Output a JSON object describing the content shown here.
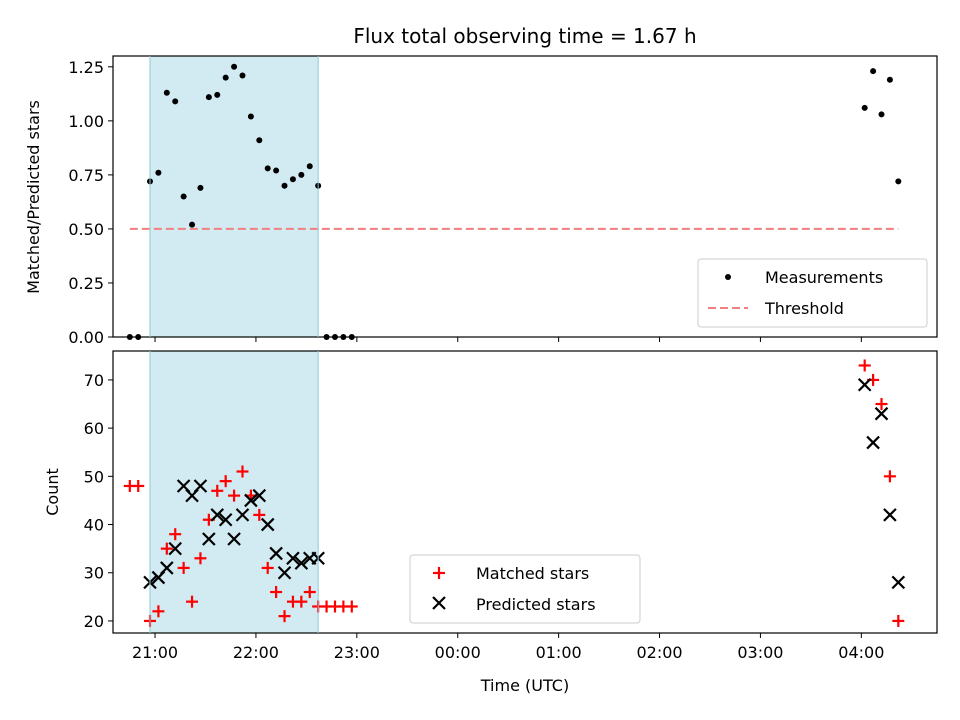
{
  "chart_data": [
    {
      "type": "scatter",
      "title": "Flux total observing time = 1.67 h",
      "ylabel": "Matched/Predicted stars",
      "xlim": [
        "20:35",
        "04:45"
      ],
      "ylim": [
        0,
        1.3
      ],
      "yticks": [
        "0.00",
        "0.25",
        "0.50",
        "0.75",
        "1.00",
        "1.25"
      ],
      "ytick_values": [
        0,
        0.25,
        0.5,
        0.75,
        1.0,
        1.25
      ],
      "shaded_interval": [
        "20:57",
        "22:37"
      ],
      "legend_location": "lower-right",
      "series": [
        {
          "name": "Measurements",
          "marker": "dot",
          "color": "#000000",
          "points": [
            [
              "20:45",
              0.0
            ],
            [
              "20:50",
              0.0
            ],
            [
              "20:57",
              0.72
            ],
            [
              "21:02",
              0.76
            ],
            [
              "21:07",
              1.13
            ],
            [
              "21:12",
              1.09
            ],
            [
              "21:17",
              0.65
            ],
            [
              "21:22",
              0.52
            ],
            [
              "21:27",
              0.69
            ],
            [
              "21:32",
              1.11
            ],
            [
              "21:37",
              1.12
            ],
            [
              "21:42",
              1.2
            ],
            [
              "21:47",
              1.25
            ],
            [
              "21:52",
              1.21
            ],
            [
              "21:57",
              1.02
            ],
            [
              "22:02",
              0.91
            ],
            [
              "22:07",
              0.78
            ],
            [
              "22:12",
              0.77
            ],
            [
              "22:17",
              0.7
            ],
            [
              "22:22",
              0.73
            ],
            [
              "22:27",
              0.75
            ],
            [
              "22:32",
              0.79
            ],
            [
              "22:37",
              0.7
            ],
            [
              "22:42",
              0.0
            ],
            [
              "22:47",
              0.0
            ],
            [
              "22:52",
              0.0
            ],
            [
              "22:57",
              0.0
            ],
            [
              "04:02",
              1.06
            ],
            [
              "04:07",
              1.23
            ],
            [
              "04:12",
              1.03
            ],
            [
              "04:17",
              1.19
            ],
            [
              "04:22",
              0.72
            ]
          ]
        },
        {
          "name": "Threshold",
          "style": "dashed",
          "color": "#f08080",
          "points": [
            [
              "20:45",
              0.5
            ],
            [
              "04:22",
              0.5
            ]
          ]
        }
      ]
    },
    {
      "type": "scatter",
      "ylabel": "Count",
      "xlabel": "Time (UTC)",
      "xlim": [
        "20:35",
        "04:45"
      ],
      "ylim": [
        17.5,
        76
      ],
      "yticks": [
        "20",
        "30",
        "40",
        "50",
        "60",
        "70"
      ],
      "ytick_values": [
        20,
        30,
        40,
        50,
        60,
        70
      ],
      "xticks": [
        "21:00",
        "22:00",
        "23:00",
        "00:00",
        "01:00",
        "02:00",
        "03:00",
        "04:00"
      ],
      "shaded_interval": [
        "20:57",
        "22:37"
      ],
      "legend_location": "lower-center",
      "series": [
        {
          "name": "Matched stars",
          "marker": "plus",
          "color": "#ff0000",
          "points": [
            [
              "20:45",
              48
            ],
            [
              "20:50",
              48
            ],
            [
              "20:57",
              20
            ],
            [
              "21:02",
              22
            ],
            [
              "21:07",
              35
            ],
            [
              "21:12",
              38
            ],
            [
              "21:17",
              31
            ],
            [
              "21:22",
              24
            ],
            [
              "21:27",
              33
            ],
            [
              "21:32",
              41
            ],
            [
              "21:37",
              47
            ],
            [
              "21:42",
              49
            ],
            [
              "21:47",
              46
            ],
            [
              "21:52",
              51
            ],
            [
              "21:57",
              46
            ],
            [
              "22:02",
              42
            ],
            [
              "22:07",
              31
            ],
            [
              "22:12",
              26
            ],
            [
              "22:17",
              21
            ],
            [
              "22:22",
              24
            ],
            [
              "22:27",
              24
            ],
            [
              "22:32",
              26
            ],
            [
              "22:37",
              23
            ],
            [
              "22:42",
              23
            ],
            [
              "22:47",
              23
            ],
            [
              "22:52",
              23
            ],
            [
              "22:57",
              23
            ],
            [
              "04:02",
              73
            ],
            [
              "04:07",
              70
            ],
            [
              "04:12",
              65
            ],
            [
              "04:17",
              50
            ],
            [
              "04:22",
              20
            ]
          ]
        },
        {
          "name": "Predicted stars",
          "marker": "x",
          "color": "#000000",
          "points": [
            [
              "20:57",
              28
            ],
            [
              "21:02",
              29
            ],
            [
              "21:07",
              31
            ],
            [
              "21:12",
              35
            ],
            [
              "21:17",
              48
            ],
            [
              "21:22",
              46
            ],
            [
              "21:27",
              48
            ],
            [
              "21:32",
              37
            ],
            [
              "21:37",
              42
            ],
            [
              "21:42",
              41
            ],
            [
              "21:47",
              37
            ],
            [
              "21:52",
              42
            ],
            [
              "21:57",
              45
            ],
            [
              "22:02",
              46
            ],
            [
              "22:07",
              40
            ],
            [
              "22:12",
              34
            ],
            [
              "22:17",
              30
            ],
            [
              "22:22",
              33
            ],
            [
              "22:27",
              32
            ],
            [
              "22:32",
              33
            ],
            [
              "22:37",
              33
            ],
            [
              "04:02",
              69
            ],
            [
              "04:12",
              63
            ],
            [
              "04:07",
              57
            ],
            [
              "04:17",
              42
            ],
            [
              "04:22",
              28
            ]
          ]
        }
      ]
    }
  ]
}
